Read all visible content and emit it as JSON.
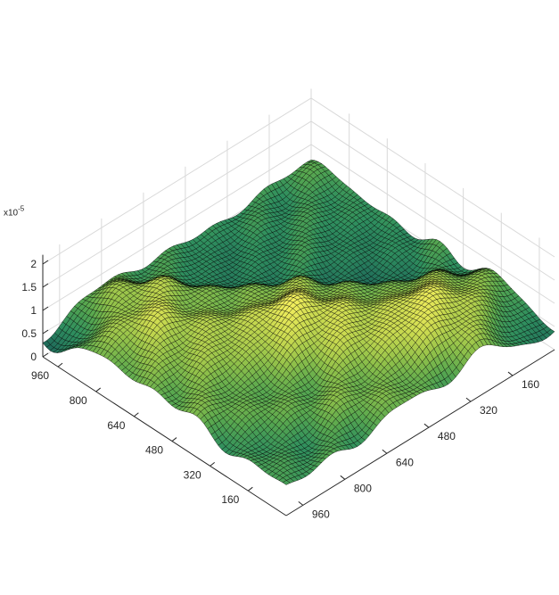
{
  "chart_data": {
    "type": "surface",
    "title": "",
    "xlabel": "",
    "ylabel": "",
    "zlabel": "",
    "x_ticks": [
      160,
      320,
      480,
      640,
      800,
      960
    ],
    "y_ticks": [
      160,
      320,
      480,
      640,
      800,
      960
    ],
    "z_ticks": [
      0,
      0.5,
      1,
      1.5,
      2
    ],
    "z_tick_labels": [
      "0",
      "0.5",
      "1",
      "1.5",
      "2"
    ],
    "z_exponent_base": "x10",
    "z_exponent_power": "-5",
    "xlim": [
      0,
      1024
    ],
    "ylim": [
      0,
      1024
    ],
    "zlim": [
      0,
      2.2
    ],
    "grid": true,
    "colormap": [
      "#1f6b5a",
      "#2f8f5e",
      "#59a84f",
      "#8fc04a",
      "#c6d84f",
      "#f2ee5c"
    ],
    "edge_color": "#000000",
    "peaks": [
      {
        "x": 560,
        "y": 560,
        "z": 1.35
      },
      {
        "x": 820,
        "y": 300,
        "z": 1.25
      },
      {
        "x": 250,
        "y": 820,
        "z": 1.05
      },
      {
        "x": 900,
        "y": 120,
        "z": 0.95
      },
      {
        "x": 120,
        "y": 900,
        "z": 0.9
      },
      {
        "x": 520,
        "y": 880,
        "z": 0.9
      },
      {
        "x": 860,
        "y": 580,
        "z": 0.85
      }
    ],
    "valleys": [
      {
        "x": 60,
        "y": 980,
        "z": 0.1
      },
      {
        "x": 980,
        "y": 60,
        "z": 0.1
      },
      {
        "x": 420,
        "y": 150,
        "z": 0.3
      },
      {
        "x": 150,
        "y": 420,
        "z": 0.35
      }
    ]
  }
}
